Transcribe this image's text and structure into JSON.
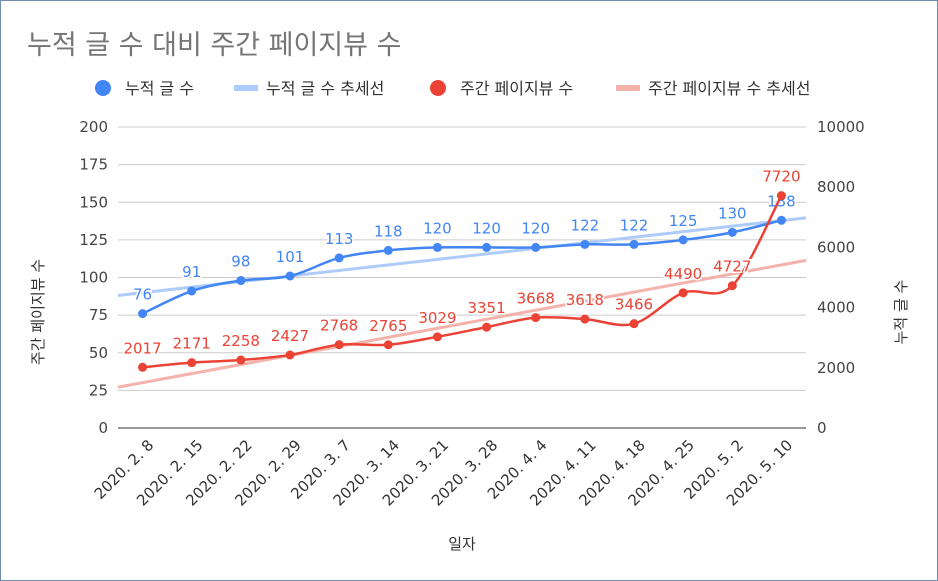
{
  "chart_data": {
    "type": "line",
    "title": "누적 글 수 대비 주간 페이지뷰 수",
    "xlabel": "일자",
    "ylabel_left": "주간 페이지뷰 수",
    "ylabel_right": "누적 글 수",
    "categories": [
      "2020. 2. 8",
      "2020. 2. 15",
      "2020. 2. 22",
      "2020. 2. 29",
      "2020. 3. 7",
      "2020. 3. 14",
      "2020. 3. 21",
      "2020. 3. 28",
      "2020. 4. 4",
      "2020. 4. 11",
      "2020. 4. 18",
      "2020. 4. 25",
      "2020. 5. 2",
      "2020. 5. 10"
    ],
    "left_axis": {
      "range": [
        0,
        200
      ],
      "ticks": [
        "0",
        "25",
        "50",
        "75",
        "100",
        "125",
        "150",
        "175",
        "200"
      ]
    },
    "right_axis": {
      "range": [
        0,
        10000
      ],
      "ticks": [
        "0",
        "2000",
        "4000",
        "6000",
        "8000",
        "10000"
      ]
    },
    "grid": true,
    "legend_position": "top",
    "series": [
      {
        "name": "누적 글 수",
        "axis": "left",
        "color": "#4285f4",
        "label_color": "#4285f4",
        "values": [
          76,
          91,
          98,
          101,
          113,
          118,
          120,
          120,
          120,
          122,
          122,
          125,
          130,
          138
        ]
      },
      {
        "name": "누적 글 수 추세선",
        "axis": "left",
        "color": "#aecbfa",
        "trend_of": 0
      },
      {
        "name": "주간 페이지뷰 수",
        "axis": "right",
        "color": "#ea4335",
        "label_color": "#ea4335",
        "values": [
          2017,
          2171,
          2258,
          2427,
          2768,
          2765,
          3029,
          3351,
          3668,
          3618,
          3466,
          4490,
          4727,
          7720
        ]
      },
      {
        "name": "주간 페이지뷰 수 추세선",
        "axis": "right",
        "color": "#f4b2aa",
        "trend_of": 2
      }
    ]
  }
}
